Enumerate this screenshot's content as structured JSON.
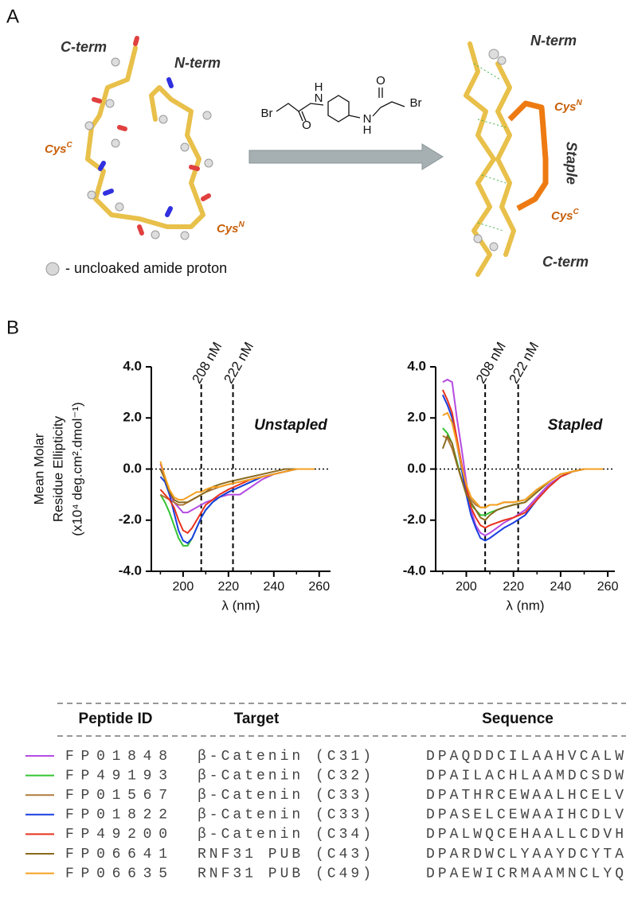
{
  "panel_labels": [
    "A",
    "B"
  ],
  "panel_a": {
    "left": {
      "c_term": "C-term",
      "n_term": "N-term",
      "cys_c": {
        "text": "Cys",
        "sup": "C"
      },
      "cys_n": {
        "text": "Cys",
        "sup": "N"
      }
    },
    "right": {
      "n_term": "N-term",
      "c_term": "C-term",
      "cys_n": {
        "text": "Cys",
        "sup": "N"
      },
      "cys_c": {
        "text": "Cys",
        "sup": "C"
      },
      "staple": "Staple"
    },
    "reagent_atoms": [
      "Br",
      "O",
      "H",
      "N",
      "N",
      "H",
      "O",
      "Br"
    ],
    "legend": "- uncloaked amide proton"
  },
  "chart_data": [
    {
      "type": "line",
      "annotation": "Unstapled",
      "ylabel": [
        "Mean Molar",
        "Residue Ellipticity",
        "(x10⁴ deg.cm².dmol⁻¹)"
      ],
      "xlabel": "λ (nm)",
      "xlim": [
        186,
        265
      ],
      "xticks": [
        200,
        220,
        240,
        260
      ],
      "xminorticks": [
        190,
        210,
        230,
        250
      ],
      "ylim": [
        -4,
        4
      ],
      "yticks": [
        {
          "value": 4,
          "label": "4.0"
        },
        {
          "value": 2,
          "label": "2.0"
        },
        {
          "value": 0,
          "label": "0.0"
        },
        {
          "value": -2,
          "label": "-2.0"
        },
        {
          "value": -4,
          "label": "-4.0"
        }
      ],
      "zero_line": true,
      "ref_lines": [
        {
          "value": 208,
          "label": "208 nM"
        },
        {
          "value": 222,
          "label": "222 nM"
        }
      ],
      "x": [
        190,
        192,
        194,
        196,
        198,
        200,
        202,
        204,
        206,
        208,
        210,
        213,
        216,
        220,
        225,
        230,
        235,
        240,
        245,
        250,
        254,
        258
      ],
      "series": [
        {
          "color": "#b44be1",
          "values": [
            0.2,
            -0.3,
            -0.9,
            -1.3,
            -1.5,
            -1.7,
            -1.7,
            -1.6,
            -1.5,
            -1.4,
            -1.3,
            -1.2,
            -1.1,
            -1.0,
            -1.0,
            -0.7,
            -0.4,
            -0.2,
            -0.1,
            0.0,
            0.0,
            0.0
          ]
        },
        {
          "color": "#33c433",
          "values": [
            -1.0,
            -1.3,
            -1.7,
            -2.2,
            -2.7,
            -3.0,
            -3.0,
            -2.7,
            -2.3,
            -1.9,
            -1.6,
            -1.3,
            -1.1,
            -0.9,
            -0.7,
            -0.5,
            -0.3,
            -0.2,
            -0.1,
            0.0,
            0.0,
            0.0
          ]
        },
        {
          "color": "#b07a3a",
          "values": [
            -1.0,
            -1.1,
            -1.2,
            -1.3,
            -1.4,
            -1.4,
            -1.3,
            -1.2,
            -1.1,
            -1.0,
            -0.9,
            -0.8,
            -0.7,
            -0.6,
            -0.5,
            -0.4,
            -0.3,
            -0.2,
            -0.1,
            0.0,
            0.0,
            0.0
          ]
        },
        {
          "color": "#1a3fe0",
          "values": [
            -0.3,
            -0.5,
            -1.0,
            -1.7,
            -2.4,
            -2.8,
            -2.9,
            -2.7,
            -2.3,
            -1.9,
            -1.6,
            -1.3,
            -1.1,
            -0.9,
            -0.7,
            -0.5,
            -0.3,
            -0.2,
            -0.1,
            0.0,
            0.0,
            0.0
          ]
        },
        {
          "color": "#e8321e",
          "values": [
            -0.8,
            -1.0,
            -1.2,
            -1.5,
            -2.0,
            -2.4,
            -2.5,
            -2.3,
            -2.0,
            -1.7,
            -1.4,
            -1.2,
            -1.0,
            -0.8,
            -0.6,
            -0.4,
            -0.3,
            -0.2,
            -0.1,
            0.0,
            0.0,
            0.0
          ]
        },
        {
          "color": "#8b6a1e",
          "values": [
            0.0,
            -0.4,
            -0.9,
            -1.2,
            -1.3,
            -1.3,
            -1.3,
            -1.2,
            -1.1,
            -1.0,
            -0.9,
            -0.7,
            -0.6,
            -0.5,
            -0.4,
            -0.3,
            -0.2,
            -0.1,
            0.0,
            0.0,
            0.0,
            0.0
          ]
        },
        {
          "color": "#f5a020",
          "values": [
            0.3,
            -0.3,
            -0.8,
            -1.1,
            -1.2,
            -1.2,
            -1.1,
            -1.0,
            -0.9,
            -0.9,
            -0.8,
            -0.7,
            -0.7,
            -0.6,
            -0.5,
            -0.4,
            -0.3,
            -0.2,
            -0.1,
            0.0,
            0.0,
            0.0
          ]
        }
      ]
    },
    {
      "type": "line",
      "annotation": "Stapled",
      "xlabel": "λ (nm)",
      "xlim": [
        187,
        263
      ],
      "xticks": [
        200,
        220,
        240,
        260
      ],
      "xminorticks": [
        190,
        210,
        230,
        250
      ],
      "ylim": [
        -4,
        4
      ],
      "yticks": [
        {
          "value": 4,
          "label": "4.0"
        },
        {
          "value": 2,
          "label": "2.0"
        },
        {
          "value": 0,
          "label": "0.0"
        },
        {
          "value": -2,
          "label": "-2.0"
        },
        {
          "value": -4,
          "label": "-4.0"
        }
      ],
      "zero_line": true,
      "ref_lines": [
        {
          "value": 208,
          "label": "208 nM"
        },
        {
          "value": 222,
          "label": "222 nM"
        }
      ],
      "x": [
        190,
        192,
        194,
        196,
        198,
        200,
        202,
        204,
        206,
        208,
        210,
        213,
        216,
        220,
        225,
        230,
        235,
        240,
        245,
        250,
        254,
        258
      ],
      "series": [
        {
          "color": "#b44be1",
          "values": [
            3.4,
            3.5,
            3.4,
            2.0,
            0.8,
            -0.5,
            -1.6,
            -2.2,
            -2.5,
            -2.6,
            -2.5,
            -2.3,
            -2.1,
            -1.9,
            -1.6,
            -1.1,
            -0.6,
            -0.3,
            -0.1,
            0.0,
            0.0,
            0.0
          ]
        },
        {
          "color": "#33c433",
          "values": [
            1.6,
            1.4,
            1.0,
            0.3,
            -0.4,
            -1.0,
            -1.4,
            -1.6,
            -1.8,
            -1.8,
            -1.7,
            -1.6,
            -1.5,
            -1.4,
            -1.3,
            -0.9,
            -0.5,
            -0.2,
            -0.1,
            0.0,
            0.0,
            0.0
          ]
        },
        {
          "color": "#b07a3a",
          "values": [
            1.3,
            1.2,
            0.8,
            0.2,
            -0.4,
            -0.9,
            -1.2,
            -1.4,
            -1.5,
            -1.5,
            -1.4,
            -1.4,
            -1.3,
            -1.3,
            -1.2,
            -0.8,
            -0.5,
            -0.2,
            -0.1,
            0.0,
            0.0,
            0.0
          ]
        },
        {
          "color": "#1a3fe0",
          "values": [
            2.9,
            2.5,
            2.0,
            1.0,
            0.0,
            -1.0,
            -1.8,
            -2.3,
            -2.7,
            -2.8,
            -2.7,
            -2.5,
            -2.3,
            -2.1,
            -1.8,
            -1.2,
            -0.7,
            -0.3,
            -0.1,
            0.0,
            0.0,
            0.0
          ]
        },
        {
          "color": "#e8321e",
          "values": [
            3.1,
            2.7,
            2.2,
            1.2,
            0.2,
            -0.7,
            -1.5,
            -1.9,
            -2.2,
            -2.3,
            -2.2,
            -2.1,
            -2.0,
            -1.9,
            -1.7,
            -1.2,
            -0.7,
            -0.3,
            -0.1,
            0.0,
            0.0,
            0.0
          ]
        },
        {
          "color": "#8b6a1e",
          "values": [
            0.8,
            1.3,
            1.0,
            0.2,
            -0.4,
            -1.0,
            -1.3,
            -1.6,
            -1.9,
            -2.0,
            -1.8,
            -1.6,
            -1.5,
            -1.4,
            -1.3,
            -0.9,
            -0.5,
            -0.2,
            -0.1,
            0.0,
            0.0,
            0.0
          ]
        },
        {
          "color": "#f5a020",
          "values": [
            2.1,
            2.2,
            1.8,
            1.0,
            0.1,
            -0.6,
            -1.1,
            -1.3,
            -1.5,
            -1.5,
            -1.4,
            -1.4,
            -1.3,
            -1.3,
            -1.2,
            -0.8,
            -0.5,
            -0.2,
            -0.1,
            0.0,
            0.0,
            0.0
          ]
        }
      ]
    }
  ],
  "table": {
    "headers": [
      "Peptide ID",
      "Target",
      "Sequence"
    ],
    "rows": [
      {
        "color": "#b44be1",
        "id": "FP01848",
        "target": "β-Catenin (C31)",
        "sequence": "DPAQDDCILAAHVCALW"
      },
      {
        "color": "#33c433",
        "id": "FP49193",
        "target": "β-Catenin (C32)",
        "sequence": "DPAILACHLAAMDCSDW"
      },
      {
        "color": "#b07a3a",
        "id": "FP01567",
        "target": "β-Catenin (C33)",
        "sequence": "DPATHRCEWAALHCELV"
      },
      {
        "color": "#1a3fe0",
        "id": "FP01822",
        "target": "β-Catenin (C33)",
        "sequence": "DPASELCEWAAIHCDLV"
      },
      {
        "color": "#e8321e",
        "id": "FP49200",
        "target": "β-Catenin (C34)",
        "sequence": "DPALWQCEHAALLCDVH"
      },
      {
        "color": "#8b6a1e",
        "id": "FP06641",
        "target": "RNF31 PUB (C43)",
        "sequence": "DPARDWCLYAAYDCYTA"
      },
      {
        "color": "#f5a020",
        "id": "FP06635",
        "target": "RNF31 PUB (C49)",
        "sequence": "DPAEWICRMAAMNCLYQ"
      }
    ]
  }
}
